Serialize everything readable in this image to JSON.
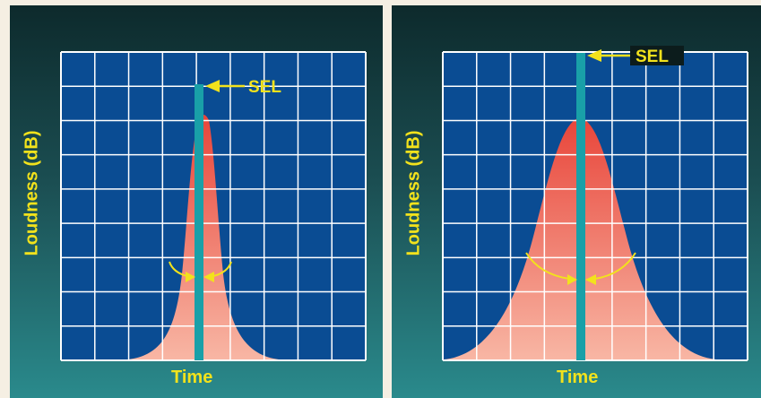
{
  "colors": {
    "grid_bg": "#0a4c93",
    "grid_line": "#ffffff",
    "curve_top": "#e8453a",
    "curve_bottom": "#f8b6a4",
    "bar": "#19a0a8",
    "arrow": "#f2e21c",
    "label": "#f2e21c",
    "sel_box": "#0c1c1c"
  },
  "left_panel": {
    "y_axis_label": "Loudness (dB)",
    "x_axis_label": "Time",
    "sel_label": "SEL"
  },
  "right_panel": {
    "y_axis_label": "Loudness (dB)",
    "x_axis_label": "Time",
    "sel_label": "SEL"
  }
}
